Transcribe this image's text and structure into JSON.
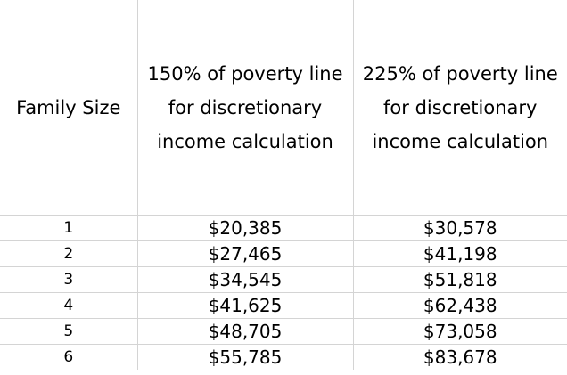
{
  "table": {
    "headers": [
      "Family Size",
      "150% of poverty line for discretionary income calculation",
      "225% of poverty line for discretionary income calculation"
    ],
    "rows": [
      [
        "1",
        "$20,385",
        "$30,578"
      ],
      [
        "2",
        "$27,465",
        "$41,198"
      ],
      [
        "3",
        "$34,545",
        "$51,818"
      ],
      [
        "4",
        "$41,625",
        "$62,438"
      ],
      [
        "5",
        "$48,705",
        "$73,058"
      ],
      [
        "6",
        "$55,785",
        "$83,678"
      ]
    ]
  }
}
